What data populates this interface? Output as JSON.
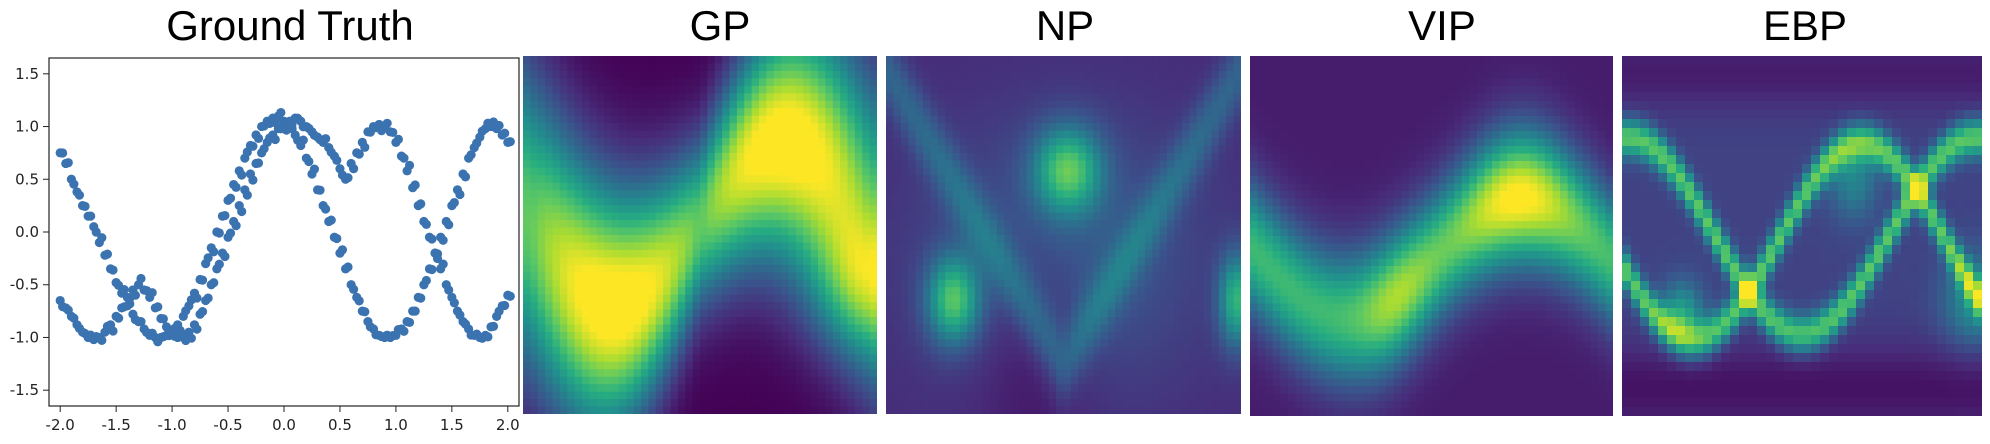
{
  "titles": {
    "ground_truth": "Ground Truth",
    "gp": "GP",
    "np": "NP",
    "vip": "VIP",
    "ebp": "EBP"
  },
  "colors": {
    "points": "#3a73b0",
    "viridis_low": "#440154",
    "viridis_mid": "#21918c",
    "viridis_high": "#fde725"
  },
  "chart_data": [
    {
      "type": "scatter",
      "title": "Ground Truth",
      "xlim": [
        -2.1,
        2.1
      ],
      "ylim": [
        -1.65,
        1.65
      ],
      "xticks": [
        "-2.0",
        "-1.5",
        "-1.0",
        "-0.5",
        "0.0",
        "0.5",
        "1.0",
        "1.5",
        "2.0"
      ],
      "yticks": [
        "-1.5",
        "-1.0",
        "-0.5",
        "0.0",
        "0.5",
        "1.0",
        "1.5"
      ],
      "grid": false,
      "series": [
        {
          "x": [
            -2.0,
            -1.95,
            -1.9,
            -1.85,
            -1.8,
            -1.75,
            -1.7,
            -1.65,
            -1.6,
            -1.55,
            -1.5,
            -1.45,
            -1.4,
            -1.35,
            -1.3,
            -1.25,
            -1.2,
            -1.15,
            -1.1,
            -1.05,
            -1.0,
            -0.95,
            -0.9,
            -0.85,
            -0.8,
            -0.75,
            -0.7,
            -0.65,
            -0.6,
            -0.55,
            -0.5,
            -0.45,
            -0.4,
            -0.35,
            -0.3,
            -0.25,
            -0.2,
            -0.15,
            -0.1,
            -0.05,
            0.0,
            0.05,
            0.1,
            0.15,
            0.2,
            0.25,
            0.3,
            0.35,
            0.4,
            0.45,
            0.5,
            0.55,
            0.6,
            0.65,
            0.7,
            0.75,
            0.8,
            0.85,
            0.9,
            0.95,
            1.0,
            1.05,
            1.1,
            1.15,
            1.2,
            1.25,
            1.3,
            1.35,
            1.4,
            1.45,
            1.5,
            1.55,
            1.6,
            1.65,
            1.7,
            1.75,
            1.8,
            1.85,
            1.9,
            1.95,
            2.0
          ],
          "y": [
            0.75,
            0.65,
            0.5,
            0.38,
            0.25,
            0.15,
            0.05,
            -0.1,
            -0.22,
            -0.35,
            -0.48,
            -0.58,
            -0.7,
            -0.78,
            -0.85,
            -0.92,
            -0.98,
            -1.0,
            -1.0,
            -0.98,
            -0.95,
            -0.88,
            -0.8,
            -0.7,
            -0.58,
            -0.45,
            -0.3,
            -0.15,
            0.0,
            0.15,
            0.3,
            0.45,
            0.58,
            0.7,
            0.82,
            0.92,
            1.0,
            1.05,
            1.08,
            1.1,
            1.05,
            1.0,
            0.92,
            0.82,
            0.7,
            0.55,
            0.4,
            0.25,
            0.1,
            -0.05,
            -0.2,
            -0.35,
            -0.5,
            -0.62,
            -0.75,
            -0.85,
            -0.92,
            -0.98,
            -1.0,
            -1.0,
            -0.98,
            -0.92,
            -0.85,
            -0.75,
            -0.62,
            -0.5,
            -0.35,
            -0.2,
            -0.05,
            0.1,
            0.25,
            0.4,
            0.55,
            0.7,
            0.8,
            0.9,
            0.98,
            1.0,
            0.98,
            0.92,
            0.85
          ]
        },
        {
          "x": [
            -2.0,
            -1.95,
            -1.9,
            -1.85,
            -1.8,
            -1.75,
            -1.7,
            -1.65,
            -1.6,
            -1.55,
            -1.5,
            -1.45,
            -1.4,
            -1.35,
            -1.3,
            -1.25,
            -1.2,
            -1.15,
            -1.1,
            -1.05,
            -1.0,
            -0.95,
            -0.9,
            -0.85,
            -0.8,
            -0.75,
            -0.7,
            -0.65,
            -0.6,
            -0.55,
            -0.5,
            -0.45,
            -0.4,
            -0.35,
            -0.3,
            -0.25,
            -0.2,
            -0.15,
            -0.1,
            -0.05,
            0.0,
            0.05,
            0.1,
            0.15,
            0.2,
            0.25,
            0.3,
            0.35,
            0.4,
            0.45,
            0.5,
            0.55,
            0.6,
            0.65,
            0.7,
            0.75,
            0.8,
            0.85,
            0.9,
            0.95,
            1.0,
            1.05,
            1.1,
            1.15,
            1.2,
            1.25,
            1.3,
            1.35,
            1.4,
            1.45,
            1.5,
            1.55,
            1.6,
            1.65,
            1.7,
            1.75,
            1.8,
            1.85,
            1.9,
            1.95,
            2.0
          ],
          "y": [
            -0.65,
            -0.72,
            -0.8,
            -0.88,
            -0.95,
            -1.0,
            -1.02,
            -1.0,
            -0.95,
            -0.88,
            -0.8,
            -0.72,
            -0.62,
            -0.55,
            -0.5,
            -0.55,
            -0.62,
            -0.72,
            -0.82,
            -0.9,
            -0.95,
            -1.0,
            -1.0,
            -0.95,
            -0.88,
            -0.78,
            -0.65,
            -0.5,
            -0.35,
            -0.2,
            -0.05,
            0.1,
            0.25,
            0.4,
            0.55,
            0.65,
            0.75,
            0.85,
            0.92,
            0.98,
            1.02,
            1.05,
            1.08,
            1.05,
            1.0,
            0.95,
            0.9,
            0.85,
            0.8,
            0.72,
            0.6,
            0.5,
            0.65,
            0.75,
            0.85,
            0.95,
            1.0,
            1.02,
            1.0,
            0.95,
            0.85,
            0.72,
            0.58,
            0.42,
            0.25,
            0.1,
            -0.05,
            -0.2,
            -0.35,
            -0.5,
            -0.62,
            -0.75,
            -0.85,
            -0.92,
            -0.98,
            -1.0,
            -0.98,
            -0.9,
            -0.8,
            -0.7,
            -0.6
          ]
        }
      ]
    },
    {
      "type": "heatmap",
      "title": "GP",
      "colormap": "viridis",
      "model": "gp"
    },
    {
      "type": "heatmap",
      "title": "NP",
      "colormap": "viridis",
      "model": "np"
    },
    {
      "type": "heatmap",
      "title": "VIP",
      "colormap": "viridis",
      "model": "vip"
    },
    {
      "type": "heatmap",
      "title": "EBP",
      "colormap": "viridis",
      "model": "ebp"
    }
  ]
}
